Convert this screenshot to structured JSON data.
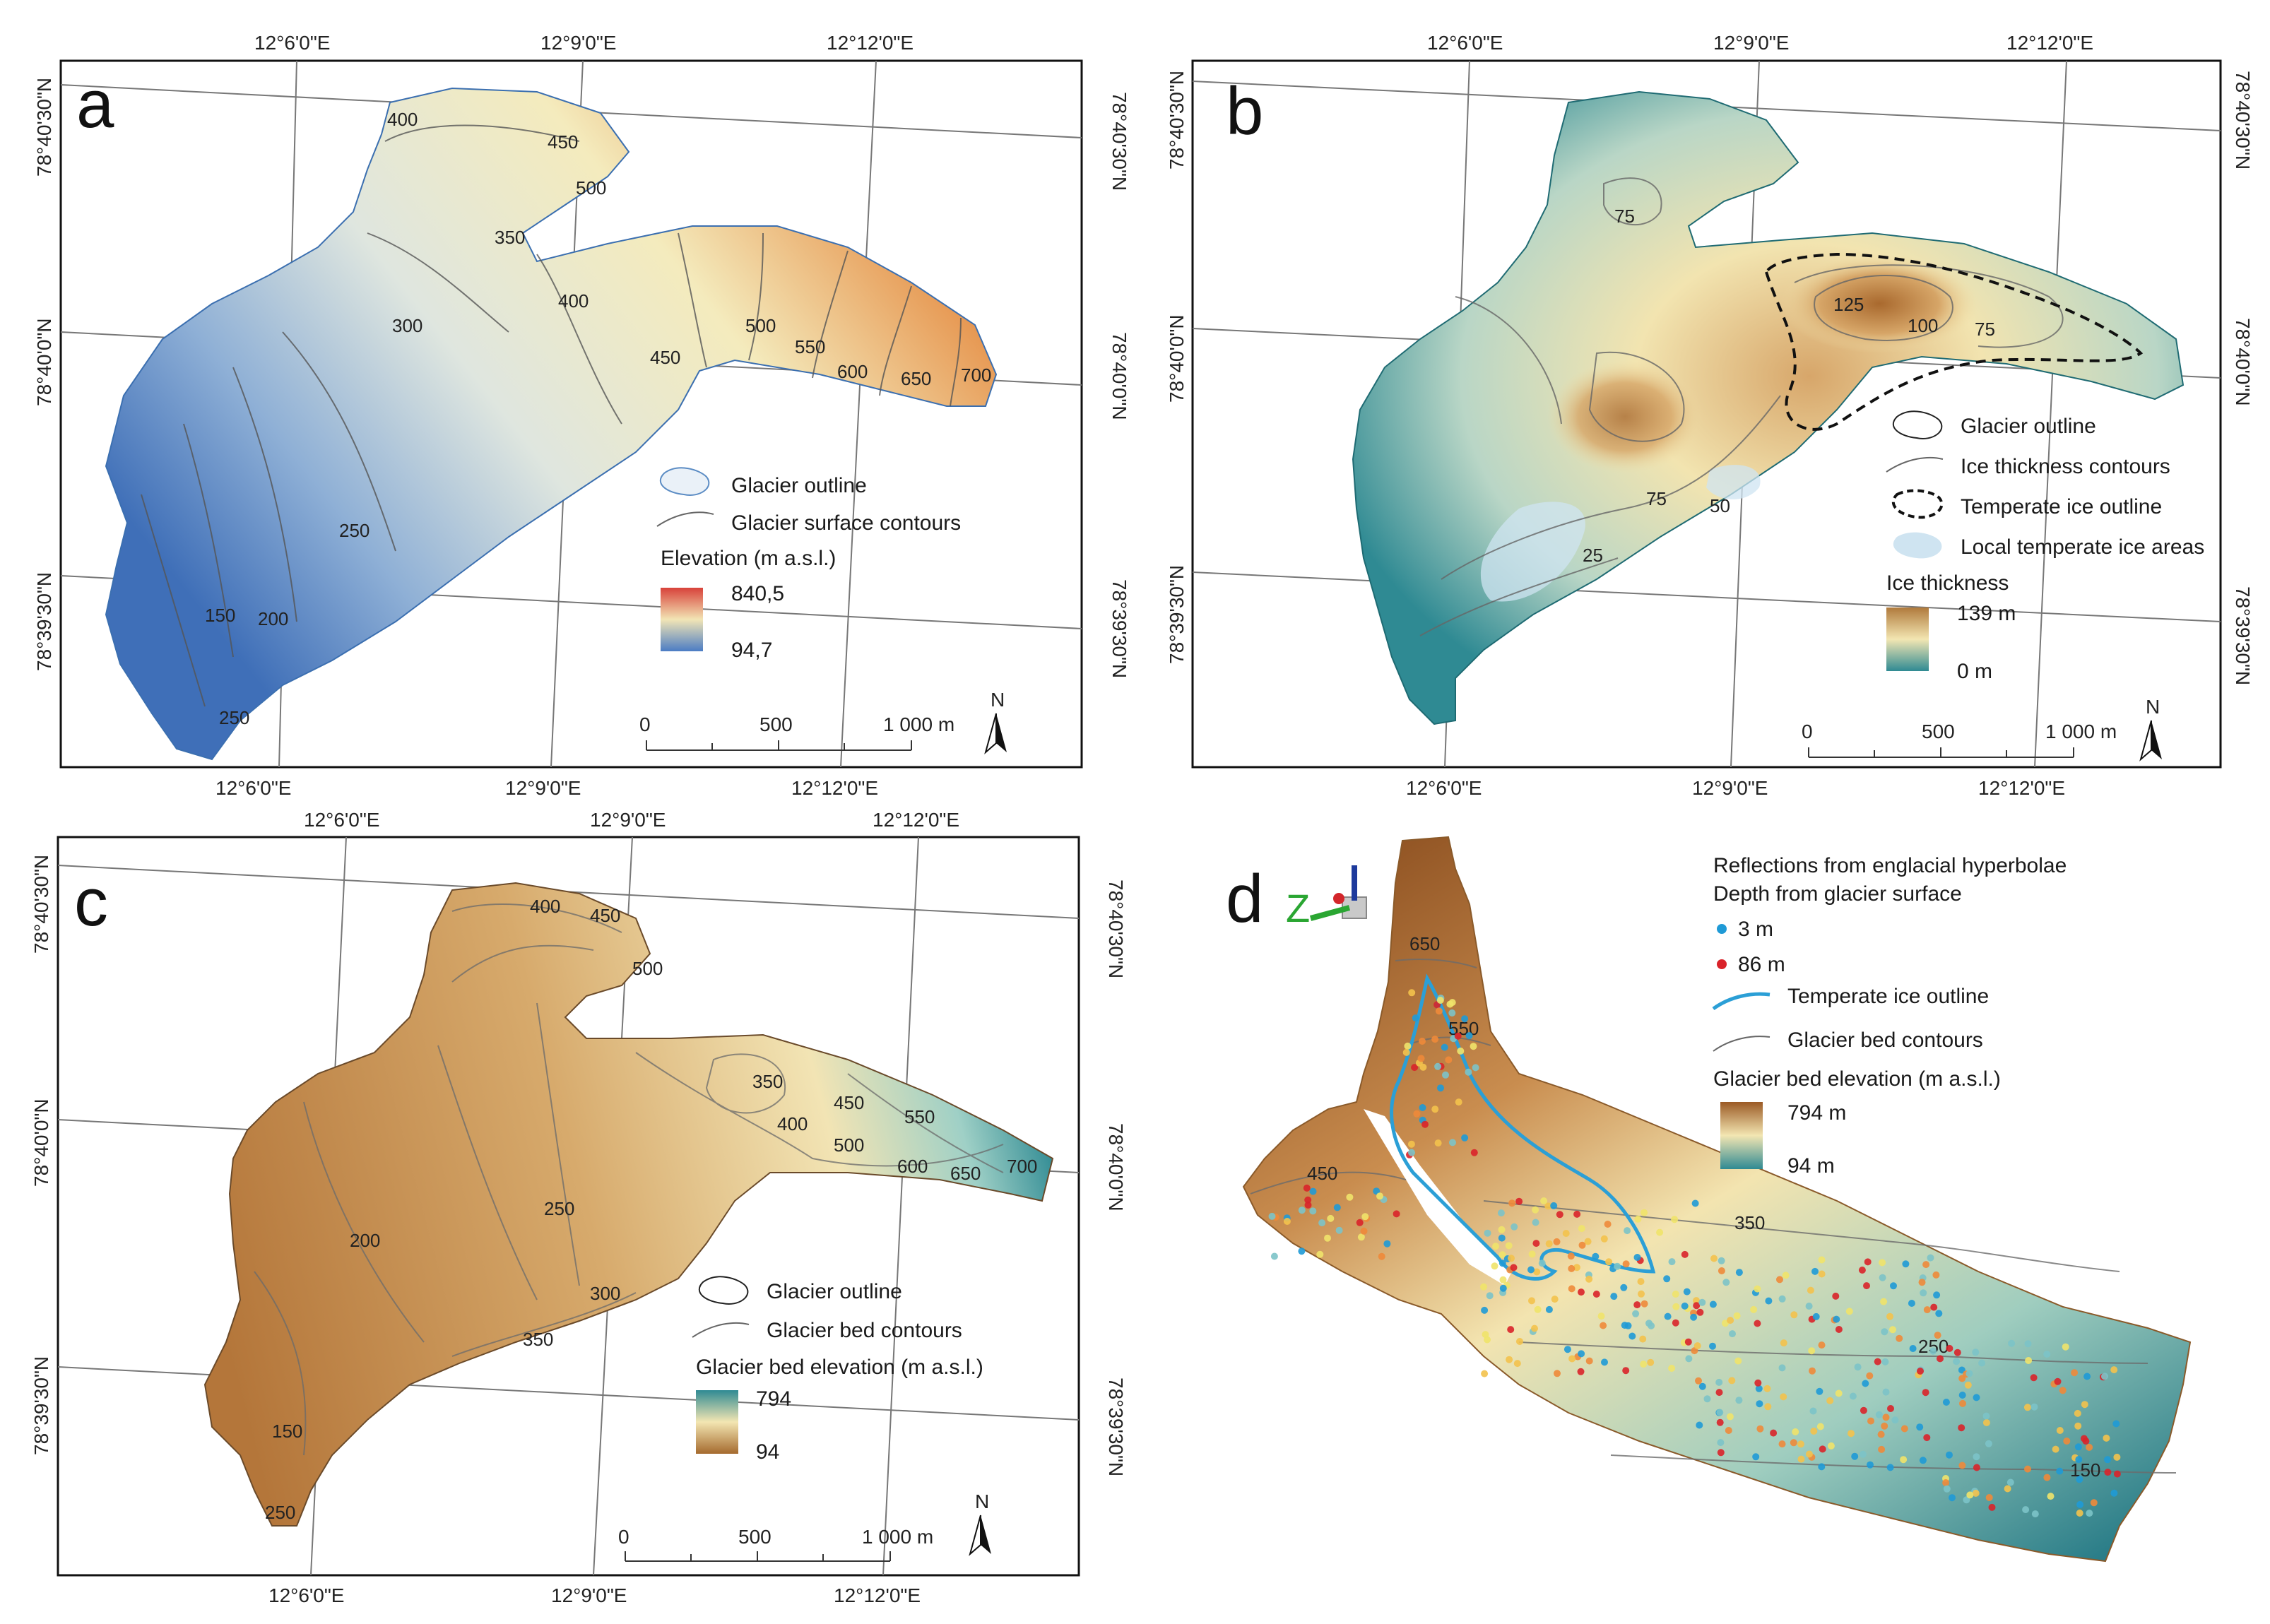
{
  "panels": {
    "a": {
      "letter": "a",
      "coords": {
        "top": [
          "12°6'0\"E",
          "12°9'0\"E",
          "12°12'0\"E"
        ],
        "bottom": [
          "12°6'0\"E",
          "12°9'0\"E",
          "12°12'0\"E"
        ],
        "left": [
          "78°40'30\"N",
          "78°40'0\"N",
          "78°39'30\"N"
        ],
        "right": [
          "78°40'30\"N",
          "78°40'0\"N",
          "78°39'30\"N"
        ]
      },
      "contour_labels": [
        "400",
        "450",
        "500",
        "350",
        "400",
        "300",
        "500",
        "450",
        "550",
        "600",
        "650",
        "700",
        "250",
        "200",
        "150",
        "250"
      ],
      "legend": {
        "outline": "Glacier outline",
        "contours": "Glacier surface contours",
        "scale_title": "Elevation  (m a.s.l.)",
        "max": "840,5",
        "min": "94,7",
        "colors": [
          "#d8423a",
          "#f2e5b5",
          "#4b7cc4"
        ]
      },
      "scalebar": [
        "0",
        "500",
        "1 000 m"
      ],
      "north": "N"
    },
    "b": {
      "letter": "b",
      "coords": {
        "top": [
          "12°6'0\"E",
          "12°9'0\"E",
          "12°12'0\"E"
        ],
        "bottom": [
          "12°6'0\"E",
          "12°9'0\"E",
          "12°12'0\"E"
        ],
        "left": [
          "78°40'30\"N",
          "78°40'0\"N",
          "78°39'30\"N"
        ],
        "right": [
          "78°40'30\"N",
          "78°40'0\"N",
          "78°39'30\"N"
        ]
      },
      "contour_labels": [
        "75",
        "125",
        "100",
        "75",
        "75",
        "50",
        "25"
      ],
      "legend": {
        "outline": "Glacier outline",
        "contours": "Ice thickness contours",
        "temperate": "Temperate ice outline",
        "local": "Local temperate ice areas",
        "scale_title": "Ice thickness",
        "max": "139 m",
        "min": "0 m",
        "colors": [
          "#b07a3c",
          "#f3e6b2",
          "#2f8a93"
        ]
      },
      "scalebar": [
        "0",
        "500",
        "1 000 m"
      ],
      "north": "N"
    },
    "c": {
      "letter": "c",
      "coords": {
        "top": [
          "12°6'0\"E",
          "12°9'0\"E",
          "12°12'0\"E"
        ],
        "bottom": [
          "12°6'0\"E",
          "12°9'0\"E",
          "12°12'0\"E"
        ],
        "left": [
          "78°40'30\"N",
          "78°40'0\"N",
          "78°39'30\"N"
        ],
        "right": [
          "78°40'30\"N",
          "78°40'0\"N",
          "78°39'30\"N"
        ]
      },
      "contour_labels": [
        "400",
        "450",
        "500",
        "350",
        "400",
        "450",
        "550",
        "500",
        "600",
        "650",
        "700",
        "250",
        "200",
        "300",
        "350",
        "150",
        "250"
      ],
      "legend": {
        "outline": "Glacier outline",
        "contours": "Glacier bed contours",
        "scale_title": "Glacier bed elevation (m a.s.l.)",
        "max": "794",
        "min": "94",
        "colors": [
          "#2f8a93",
          "#f3e6b2",
          "#a56a2e"
        ]
      },
      "scalebar": [
        "0",
        "500",
        "1 000 m"
      ],
      "north": "N"
    },
    "d": {
      "letter": "d",
      "axis_z": "Z",
      "contour_labels": [
        "650",
        "550",
        "450",
        "350",
        "250",
        "150"
      ],
      "legend": {
        "title1": "Reflections from englacial hyperbolae",
        "title2": "Depth from glacier surface",
        "shallow": "3 m",
        "deep": "86 m",
        "temperate": "Temperate ice outline",
        "contours": "Glacier bed contours",
        "scale_title": "Glacier bed elevation  (m a.s.l.)",
        "max": "794 m",
        "min": "94 m",
        "shallow_color": "#1f9ad6",
        "deep_color": "#d9232a",
        "colors": [
          "#9b5a25",
          "#f3e6b2",
          "#2f8a93"
        ]
      }
    }
  }
}
